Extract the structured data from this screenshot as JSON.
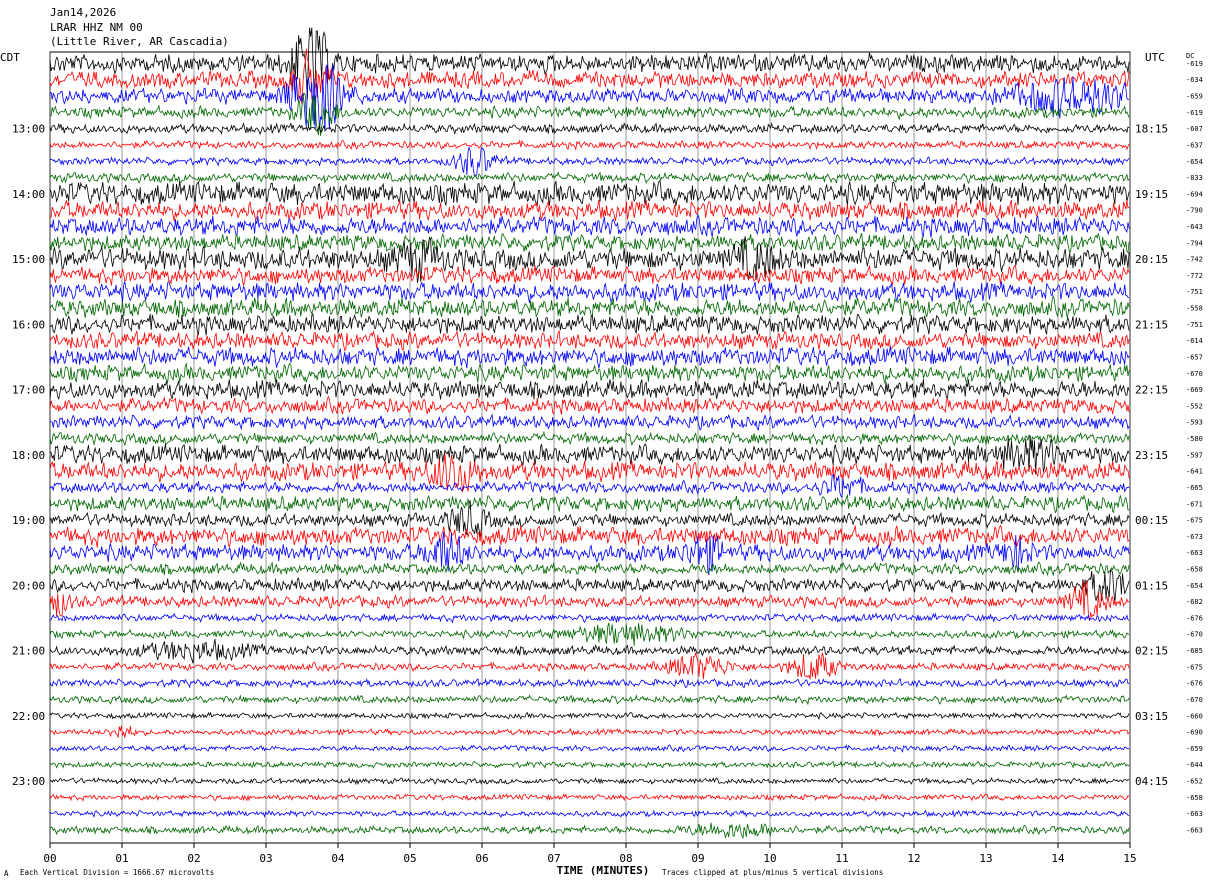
{
  "header": {
    "date": "Jan14,2026",
    "station": "LRAR HHZ NM 00",
    "location": "(Little River, AR Cascadia)"
  },
  "axis": {
    "left_label": "CDT",
    "right_label": "UTC",
    "dc_label": "DC",
    "xlabel": "TIME (MINUTES)",
    "x_ticks": [
      "00",
      "01",
      "02",
      "03",
      "04",
      "05",
      "06",
      "07",
      "08",
      "09",
      "10",
      "11",
      "12",
      "13",
      "14",
      "15"
    ]
  },
  "footer": {
    "left_note": "Each Vertical Division = 1666.67 microvolts",
    "right_note": "Traces clipped at plus/minus 5 vertical divisions",
    "corner_mark": "A"
  },
  "colors": {
    "trace_cycle": [
      "#000000",
      "#ff0000",
      "#0000ff",
      "#006600"
    ],
    "grid": "#000000",
    "background": "#ffffff"
  },
  "chart_data": {
    "type": "line",
    "title": "LRAR HHZ NM 00",
    "xlabel": "TIME (MINUTES)",
    "xlim": [
      0,
      15
    ],
    "trace_minutes": 15,
    "traces_per_hour": 4,
    "left_hour_labels": [
      "13:00",
      "14:00",
      "15:00",
      "16:00",
      "17:00",
      "18:00",
      "19:00",
      "20:00",
      "21:00",
      "22:00",
      "23:00"
    ],
    "right_hour_labels": [
      "18:15",
      "19:15",
      "20:15",
      "21:15",
      "22:15",
      "23:15",
      "00:15",
      "01:15",
      "02:15",
      "03:15",
      "04:15"
    ],
    "dc_offsets": [
      "-619",
      "-634",
      "-659",
      "-619",
      "-607",
      "-637",
      "-654",
      "-833",
      "-694",
      "-790",
      "-643",
      "-794",
      "-742",
      "-772",
      "-751",
      "-558",
      "-751",
      "-614",
      "-657",
      "-670",
      "-669",
      "-552",
      "-593",
      "-580",
      "-597",
      "-641",
      "-665",
      "-671",
      "-675",
      "-673",
      "-663",
      "-658",
      "-654",
      "-682",
      "-676",
      "-670",
      "-685",
      "-675",
      "-676",
      "-670",
      "-660",
      "-690",
      "-659",
      "-644",
      "-652",
      "-658",
      "-663",
      "-663"
    ],
    "noise_levels": [
      1.0,
      0.9,
      0.8,
      0.6,
      0.5,
      0.4,
      0.4,
      0.5,
      1.2,
      1.0,
      1.0,
      0.9,
      1.2,
      0.9,
      1.0,
      1.0,
      1.0,
      0.9,
      1.0,
      0.9,
      1.0,
      0.8,
      0.7,
      0.6,
      1.0,
      1.0,
      0.6,
      0.8,
      0.7,
      1.0,
      0.9,
      0.6,
      0.7,
      0.6,
      0.4,
      0.4,
      0.5,
      0.4,
      0.4,
      0.4,
      0.3,
      0.3,
      0.3,
      0.3,
      0.3,
      0.3,
      0.3,
      0.4
    ],
    "events": [
      {
        "trace": 0,
        "minute": 3.6,
        "amplitude": 5.0,
        "duration": 0.5
      },
      {
        "trace": 1,
        "minute": 3.6,
        "amplitude": 3.0,
        "duration": 0.5
      },
      {
        "trace": 2,
        "minute": 3.7,
        "amplitude": 5.0,
        "duration": 0.7
      },
      {
        "trace": 2,
        "minute": 14.2,
        "amplitude": 2.0,
        "duration": 1.6
      },
      {
        "trace": 3,
        "minute": 3.7,
        "amplitude": 2.5,
        "duration": 0.5
      },
      {
        "trace": 6,
        "minute": 5.9,
        "amplitude": 1.8,
        "duration": 0.5
      },
      {
        "trace": 12,
        "minute": 5.1,
        "amplitude": 1.8,
        "duration": 0.6
      },
      {
        "trace": 12,
        "minute": 9.8,
        "amplitude": 1.8,
        "duration": 0.6
      },
      {
        "trace": 24,
        "minute": 13.6,
        "amplitude": 1.8,
        "duration": 0.8
      },
      {
        "trace": 25,
        "minute": 5.6,
        "amplitude": 2.2,
        "duration": 0.6
      },
      {
        "trace": 26,
        "minute": 11.0,
        "amplitude": 1.2,
        "duration": 0.6
      },
      {
        "trace": 28,
        "minute": 5.8,
        "amplitude": 1.8,
        "duration": 0.5
      },
      {
        "trace": 30,
        "minute": 5.5,
        "amplitude": 2.2,
        "duration": 0.5
      },
      {
        "trace": 30,
        "minute": 9.1,
        "amplitude": 2.0,
        "duration": 0.5
      },
      {
        "trace": 30,
        "minute": 13.4,
        "amplitude": 1.8,
        "duration": 0.4
      },
      {
        "trace": 32,
        "minute": 14.7,
        "amplitude": 2.0,
        "duration": 0.6
      },
      {
        "trace": 33,
        "minute": 0.1,
        "amplitude": 1.5,
        "duration": 0.3
      },
      {
        "trace": 33,
        "minute": 14.4,
        "amplitude": 2.0,
        "duration": 0.5
      },
      {
        "trace": 35,
        "minute": 8.0,
        "amplitude": 1.2,
        "duration": 1.5
      },
      {
        "trace": 36,
        "minute": 2.0,
        "amplitude": 1.0,
        "duration": 1.5
      },
      {
        "trace": 37,
        "minute": 9.0,
        "amplitude": 1.5,
        "duration": 0.8
      },
      {
        "trace": 37,
        "minute": 10.6,
        "amplitude": 1.8,
        "duration": 0.6
      },
      {
        "trace": 41,
        "minute": 1.0,
        "amplitude": 1.0,
        "duration": 0.3
      },
      {
        "trace": 47,
        "minute": 9.5,
        "amplitude": 0.8,
        "duration": 1.2
      }
    ]
  }
}
